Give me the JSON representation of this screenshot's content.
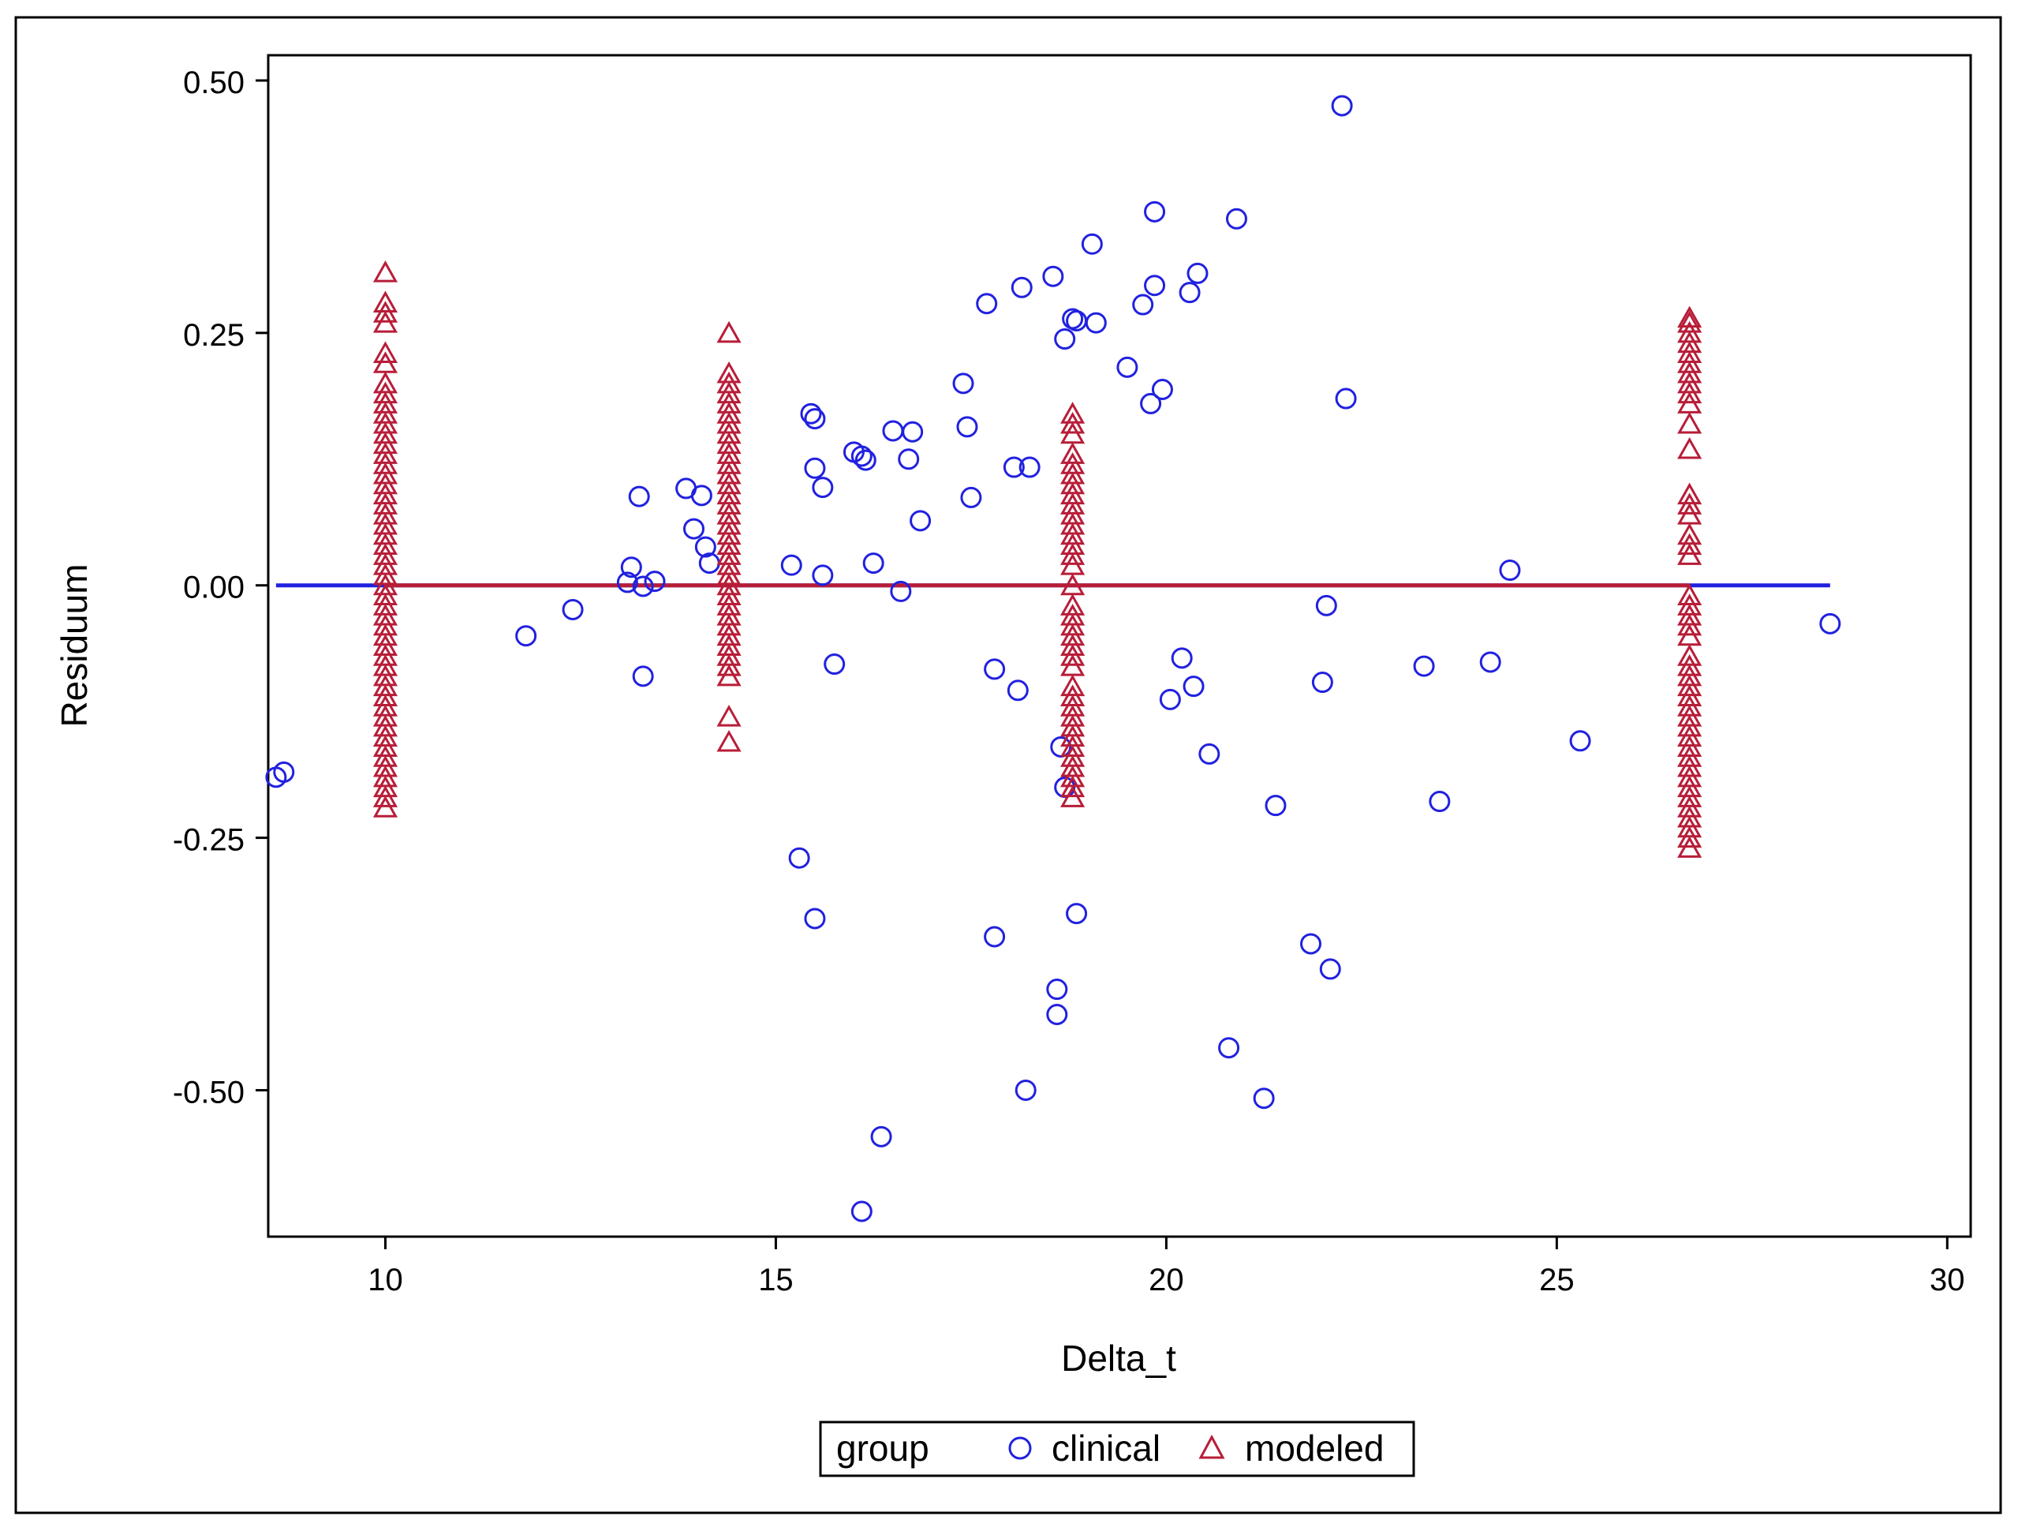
{
  "chart_data": {
    "type": "scatter",
    "title": "",
    "xlabel": "Delta_t",
    "ylabel": "Residuum",
    "xlim": [
      8.5,
      30.3
    ],
    "ylim": [
      -0.645,
      0.525
    ],
    "xticks": [
      10,
      15,
      20,
      25,
      30
    ],
    "yticks": [
      0.5,
      0.25,
      0.0,
      -0.25,
      -0.5
    ],
    "xtick_labels": [
      "10",
      "15",
      "20",
      "25",
      "30"
    ],
    "ytick_labels": [
      "0.50",
      "0.25",
      "0.00",
      "-0.25",
      "-0.50"
    ],
    "grid": false,
    "legend": {
      "position": "bottom-center",
      "title": "group",
      "entries": [
        "clinical",
        "modeled"
      ]
    },
    "reference_lines": [
      {
        "name": "clinical",
        "x": [
          8.6,
          28.5
        ],
        "y": 0.0,
        "color": "#2121e0"
      },
      {
        "name": "modeled",
        "x": [
          10.0,
          26.7
        ],
        "y": 0.0,
        "color": "#b81d38"
      }
    ],
    "series": [
      {
        "name": "clinical",
        "marker": "circle",
        "color": "#2121e0",
        "points": [
          [
            8.6,
            -0.19
          ],
          [
            8.7,
            -0.185
          ],
          [
            11.8,
            -0.05
          ],
          [
            12.4,
            -0.024
          ],
          [
            13.1,
            0.003
          ],
          [
            13.15,
            0.018
          ],
          [
            13.25,
            0.088
          ],
          [
            13.3,
            -0.001
          ],
          [
            13.3,
            -0.09
          ],
          [
            13.45,
            0.004
          ],
          [
            13.85,
            0.096
          ],
          [
            13.95,
            0.056
          ],
          [
            14.05,
            0.089
          ],
          [
            14.1,
            0.038
          ],
          [
            14.15,
            0.022
          ],
          [
            15.2,
            0.02
          ],
          [
            15.3,
            -0.27
          ],
          [
            15.45,
            0.17
          ],
          [
            15.5,
            0.165
          ],
          [
            15.5,
            0.116
          ],
          [
            15.5,
            -0.33
          ],
          [
            15.6,
            0.097
          ],
          [
            15.6,
            0.01
          ],
          [
            15.75,
            -0.078
          ],
          [
            16.0,
            0.132
          ],
          [
            16.1,
            0.128
          ],
          [
            16.1,
            -0.62
          ],
          [
            16.15,
            0.124
          ],
          [
            16.25,
            0.022
          ],
          [
            16.35,
            -0.546
          ],
          [
            16.5,
            0.153
          ],
          [
            16.6,
            -0.006
          ],
          [
            16.7,
            0.125
          ],
          [
            16.75,
            0.152
          ],
          [
            16.85,
            0.064
          ],
          [
            17.4,
            0.2
          ],
          [
            17.45,
            0.157
          ],
          [
            17.5,
            0.087
          ],
          [
            17.7,
            0.279
          ],
          [
            17.8,
            -0.083
          ],
          [
            17.8,
            -0.348
          ],
          [
            18.05,
            0.117
          ],
          [
            18.1,
            -0.104
          ],
          [
            18.15,
            0.295
          ],
          [
            18.2,
            -0.5
          ],
          [
            18.25,
            0.117
          ],
          [
            18.55,
            0.306
          ],
          [
            18.6,
            -0.4
          ],
          [
            18.6,
            -0.425
          ],
          [
            18.65,
            -0.16
          ],
          [
            18.7,
            0.244
          ],
          [
            18.7,
            -0.2
          ],
          [
            18.8,
            0.264
          ],
          [
            18.85,
            0.262
          ],
          [
            18.85,
            -0.325
          ],
          [
            19.05,
            0.338
          ],
          [
            19.1,
            0.26
          ],
          [
            19.5,
            0.216
          ],
          [
            19.7,
            0.278
          ],
          [
            19.8,
            0.18
          ],
          [
            19.85,
            0.37
          ],
          [
            19.85,
            0.297
          ],
          [
            19.95,
            0.194
          ],
          [
            20.05,
            -0.113
          ],
          [
            20.2,
            -0.072
          ],
          [
            20.3,
            0.29
          ],
          [
            20.35,
            -0.1
          ],
          [
            20.4,
            0.309
          ],
          [
            20.55,
            -0.167
          ],
          [
            20.8,
            -0.458
          ],
          [
            20.9,
            0.363
          ],
          [
            21.25,
            -0.508
          ],
          [
            21.4,
            -0.218
          ],
          [
            21.85,
            -0.355
          ],
          [
            22.0,
            -0.096
          ],
          [
            22.05,
            -0.02
          ],
          [
            22.1,
            -0.38
          ],
          [
            22.25,
            0.475
          ],
          [
            22.3,
            0.185
          ],
          [
            23.3,
            -0.08
          ],
          [
            23.5,
            -0.214
          ],
          [
            24.15,
            -0.076
          ],
          [
            24.4,
            0.015
          ],
          [
            25.3,
            -0.154
          ],
          [
            28.5,
            -0.038
          ]
        ]
      },
      {
        "name": "modeled",
        "marker": "triangle",
        "color": "#b81d38",
        "groups": [
          {
            "x": 10.0,
            "y": [
              0.31,
              0.28,
              0.27,
              0.26,
              0.23,
              0.22,
              0.2,
              0.19,
              0.18,
              0.17,
              0.16,
              0.15,
              0.14,
              0.13,
              0.12,
              0.11,
              0.1,
              0.09,
              0.08,
              0.07,
              0.06,
              0.05,
              0.04,
              0.03,
              0.02,
              0.01,
              0.0,
              -0.01,
              -0.02,
              -0.03,
              -0.04,
              -0.05,
              -0.06,
              -0.07,
              -0.08,
              -0.09,
              -0.1,
              -0.11,
              -0.12,
              -0.13,
              -0.14,
              -0.15,
              -0.16,
              -0.17,
              -0.18,
              -0.19,
              -0.2,
              -0.21,
              -0.22
            ]
          },
          {
            "x": 14.4,
            "y": [
              0.25,
              0.21,
              0.2,
              0.19,
              0.18,
              0.17,
              0.16,
              0.15,
              0.14,
              0.13,
              0.12,
              0.11,
              0.1,
              0.09,
              0.08,
              0.07,
              0.06,
              0.05,
              0.04,
              0.03,
              0.02,
              0.01,
              0.0,
              -0.01,
              -0.02,
              -0.03,
              -0.04,
              -0.05,
              -0.06,
              -0.07,
              -0.08,
              -0.09,
              -0.13,
              -0.155
            ]
          },
          {
            "x": 18.8,
            "y": [
              0.17,
              0.16,
              0.15,
              0.13,
              0.12,
              0.11,
              0.1,
              0.09,
              0.08,
              0.07,
              0.06,
              0.05,
              0.04,
              0.03,
              0.02,
              0.0,
              -0.02,
              -0.03,
              -0.04,
              -0.05,
              -0.06,
              -0.07,
              -0.08,
              -0.1,
              -0.11,
              -0.12,
              -0.13,
              -0.14,
              -0.15,
              -0.16,
              -0.17,
              -0.18,
              -0.19,
              -0.2,
              -0.21
            ]
          },
          {
            "x": 26.7,
            "y": [
              0.265,
              0.26,
              0.25,
              0.24,
              0.23,
              0.22,
              0.21,
              0.2,
              0.19,
              0.18,
              0.16,
              0.135,
              0.09,
              0.08,
              0.07,
              0.05,
              0.04,
              0.03,
              -0.01,
              -0.02,
              -0.03,
              -0.04,
              -0.05,
              -0.07,
              -0.08,
              -0.09,
              -0.1,
              -0.11,
              -0.12,
              -0.13,
              -0.14,
              -0.15,
              -0.16,
              -0.17,
              -0.18,
              -0.19,
              -0.2,
              -0.21,
              -0.22,
              -0.23,
              -0.24,
              -0.25,
              -0.26
            ]
          }
        ]
      }
    ]
  }
}
